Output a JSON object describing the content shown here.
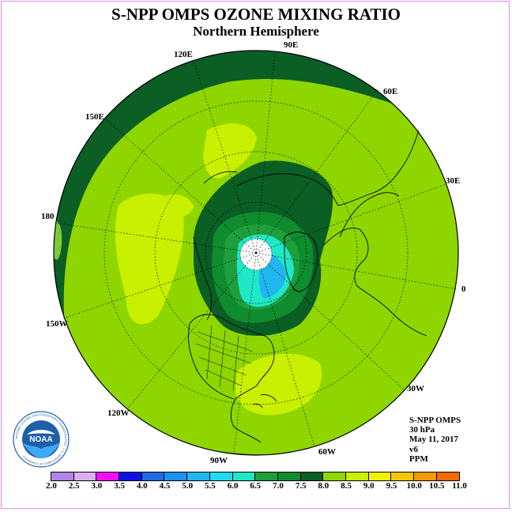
{
  "header": {
    "title": "S-NPP OMPS OZONE MIXING RATIO",
    "subtitle": "Northern Hemisphere"
  },
  "longitude_labels": [
    "90E",
    "60E",
    "30E",
    "0",
    "30W",
    "60W",
    "90W",
    "120W",
    "150W",
    "180",
    "150E",
    "120E"
  ],
  "info": {
    "instrument": "S-NPP OMPS",
    "level": "30 hPa",
    "date": "May 11, 2017",
    "version": "v6",
    "units": "PPM"
  },
  "logo": {
    "text": "NOAA",
    "ring_text": "NATIONAL OCEANIC AND ATMOSPHERIC ADMINISTRATION · U.S. DEPARTMENT OF COMMERCE"
  },
  "colorbar": {
    "ticks": [
      "2.0",
      "2.5",
      "3.0",
      "3.5",
      "4.0",
      "4.5",
      "5.0",
      "5.5",
      "6.0",
      "6.5",
      "7.0",
      "7.5",
      "8.0",
      "8.5",
      "9.0",
      "9.5",
      "10.0",
      "10.5",
      "11.0"
    ],
    "colors": [
      "#b384e8",
      "#dcaef2",
      "#f20ff2",
      "#1010e6",
      "#1f6be6",
      "#1e90f0",
      "#22b6f0",
      "#20dbf0",
      "#1fe8c8",
      "#1f9e3c",
      "#0f8c2e",
      "#0b5e24",
      "#8fd600",
      "#c8f000",
      "#f2f200",
      "#f2c800",
      "#f29a00",
      "#f26a00",
      "#f20000",
      "#7a4e2a"
    ]
  },
  "colors": {
    "background": "#ffffff",
    "frame": "#e08be0",
    "graticule": "#000000"
  }
}
